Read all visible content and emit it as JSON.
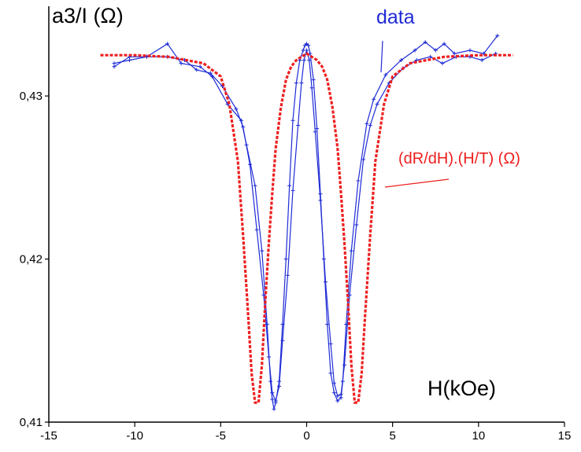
{
  "chart_data": {
    "type": "line",
    "ylabel": "a3/I (Ω)",
    "xlabel": "H(kOe)",
    "xlim": [
      -15,
      15
    ],
    "ylim": [
      0.41,
      0.4355
    ],
    "x_ticks": [
      -15,
      -10,
      -5,
      0,
      5,
      10,
      15
    ],
    "x_tick_labels": [
      "-15",
      "-10",
      "-5",
      "0",
      "5",
      "10",
      "15"
    ],
    "y_ticks": [
      0.41,
      0.42,
      0.43
    ],
    "y_tick_labels": [
      "0,41",
      "0,42",
      "0,43"
    ],
    "grid": false,
    "annotations": [
      {
        "text": "data",
        "color": "#1f2bd6"
      },
      {
        "text": "(dR/dH).(H/T) (Ω)",
        "color": "#ee1f1f"
      }
    ],
    "series": [
      {
        "color": "#1f2bd6",
        "style": "solid-with-markers",
        "x": [
          -11.2,
          -10.3,
          -9.3,
          -8.1,
          -7.3,
          -6.2,
          -5.5,
          -4.6,
          -3.8,
          -3.5,
          -3.0,
          -2.6,
          -2.3,
          -2.1,
          -2.0,
          -1.9,
          -1.8,
          -1.6,
          -1.4,
          -1.2,
          -1.0,
          -0.8,
          -0.6,
          -0.4,
          -0.2,
          -0.1,
          0.0,
          0.1,
          0.2,
          0.4,
          0.6,
          0.8,
          1.0,
          1.2,
          1.4,
          1.6,
          1.8,
          2.0,
          2.1,
          2.3,
          2.6,
          3.0,
          3.5,
          3.9,
          4.6,
          5.5,
          6.3,
          6.9,
          7.5,
          8.0,
          8.6,
          9.5,
          10.3,
          11.1
        ],
        "y": [
          0.4318,
          0.4324,
          0.4324,
          0.4332,
          0.432,
          0.4318,
          0.4312,
          0.4295,
          0.4285,
          0.427,
          0.4245,
          0.4205,
          0.416,
          0.4125,
          0.4114,
          0.4108,
          0.4112,
          0.4125,
          0.416,
          0.42,
          0.4245,
          0.4285,
          0.4308,
          0.4322,
          0.4328,
          0.4331,
          0.4332,
          0.4331,
          0.4326,
          0.431,
          0.428,
          0.424,
          0.42,
          0.416,
          0.413,
          0.4118,
          0.4113,
          0.4115,
          0.4125,
          0.416,
          0.4205,
          0.4248,
          0.4283,
          0.4298,
          0.4313,
          0.4322,
          0.4328,
          0.4333,
          0.4328,
          0.4332,
          0.4326,
          0.4328,
          0.4326,
          0.4337
        ]
      },
      {
        "color": "#1f2bd6",
        "style": "solid-with-markers",
        "x": [
          -11.2,
          -10.3,
          -9.3,
          -8.1,
          -7.1,
          -6.4,
          -5.6,
          -4.9,
          -4.1,
          -3.7,
          -3.3,
          -2.9,
          -2.5,
          -2.2,
          -2.0,
          -1.8,
          -1.6,
          -1.4,
          -1.1,
          -0.8,
          -0.5,
          -0.3,
          -0.15,
          0.0,
          0.15,
          0.3,
          0.5,
          0.8,
          1.1,
          1.4,
          1.6,
          1.8,
          2.0,
          2.2,
          2.5,
          2.9,
          3.3,
          3.7,
          4.1,
          4.8,
          5.6,
          6.4,
          7.2,
          7.9,
          8.7,
          9.5,
          10.2,
          11.0
        ],
        "y": [
          0.432,
          0.4322,
          0.4324,
          0.4324,
          0.4322,
          0.4316,
          0.4314,
          0.4306,
          0.4292,
          0.4281,
          0.4258,
          0.4218,
          0.4178,
          0.414,
          0.4118,
          0.4113,
          0.4122,
          0.415,
          0.419,
          0.4242,
          0.4282,
          0.4308,
          0.4322,
          0.4328,
          0.4322,
          0.4305,
          0.4278,
          0.4236,
          0.4186,
          0.4148,
          0.4124,
          0.4116,
          0.4117,
          0.4135,
          0.4178,
          0.4221,
          0.4261,
          0.4282,
          0.4295,
          0.4308,
          0.4317,
          0.4322,
          0.4324,
          0.432,
          0.4324,
          0.4324,
          0.4322,
          0.4326
        ]
      },
      {
        "color": "#ee1f1f",
        "style": "dashed",
        "x": [
          -12.0,
          -10.0,
          -8.0,
          -6.0,
          -5.0,
          -4.5,
          -4.0,
          -3.7,
          -3.4,
          -3.2,
          -3.0,
          -2.8,
          -2.6,
          -2.4,
          -2.2,
          -2.0,
          -1.8,
          -1.5,
          -1.2,
          -0.9,
          -0.6,
          -0.3,
          0.0,
          0.3,
          0.6,
          0.9,
          1.2,
          1.5,
          1.8,
          2.0,
          2.2,
          2.4,
          2.6,
          2.8,
          3.0,
          3.2,
          3.4,
          3.7,
          4.0,
          4.5,
          5.0,
          6.0,
          8.0,
          10.0,
          12.0
        ],
        "y": [
          0.4325,
          0.4325,
          0.4324,
          0.432,
          0.4312,
          0.4295,
          0.426,
          0.4215,
          0.4165,
          0.413,
          0.4112,
          0.4112,
          0.4135,
          0.4175,
          0.421,
          0.424,
          0.4268,
          0.4293,
          0.431,
          0.4318,
          0.4322,
          0.4324,
          0.4326,
          0.4324,
          0.4322,
          0.4318,
          0.431,
          0.4293,
          0.4268,
          0.424,
          0.421,
          0.4175,
          0.4135,
          0.4112,
          0.4112,
          0.413,
          0.4165,
          0.4215,
          0.426,
          0.4295,
          0.4312,
          0.432,
          0.4324,
          0.4325,
          0.4325
        ]
      }
    ]
  }
}
